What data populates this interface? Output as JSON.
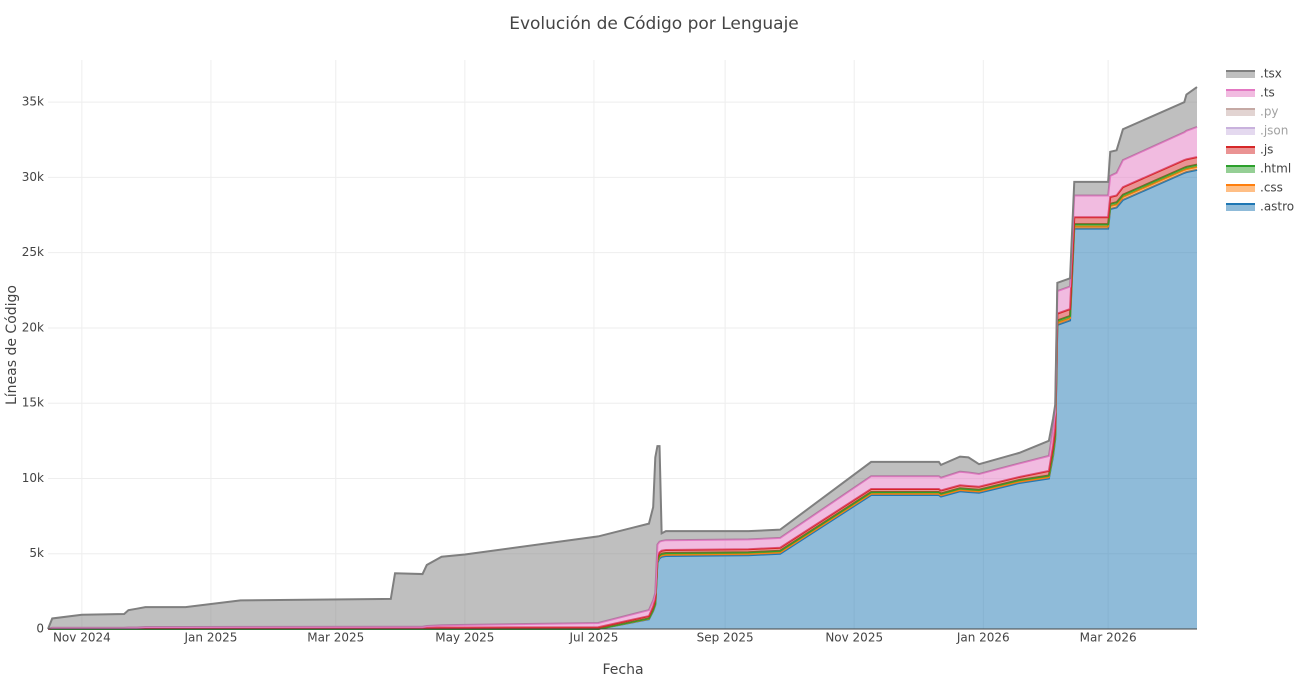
{
  "chart_data": {
    "type": "stacked_area",
    "title": "Evolución de Código por Lenguaje",
    "xlabel": "Fecha",
    "ylabel": "Líneas de Código",
    "grid": true,
    "legend": "right",
    "xlim": [
      "2024-10-16",
      "2026-04-12"
    ],
    "xticks": [
      {
        "value": "2024-11-01",
        "label": "Nov 2024"
      },
      {
        "value": "2025-01-01",
        "label": "Jan 2025"
      },
      {
        "value": "2025-03-01",
        "label": "Mar 2025"
      },
      {
        "value": "2025-05-01",
        "label": "May 2025"
      },
      {
        "value": "2025-07-01",
        "label": "Jul 2025"
      },
      {
        "value": "2025-09-01",
        "label": "Sep 2025"
      },
      {
        "value": "2025-11-01",
        "label": "Nov 2025"
      },
      {
        "value": "2026-01-01",
        "label": "Jan 2026"
      },
      {
        "value": "2026-03-01",
        "label": "Mar 2026"
      }
    ],
    "ylim": [
      0,
      37800
    ],
    "yticks": [
      0,
      {
        "value": 5000,
        "label": "5k"
      },
      {
        "value": 10000,
        "label": "10k"
      },
      {
        "value": 15000,
        "label": "15k"
      },
      {
        "value": 20000,
        "label": "20k"
      },
      {
        "value": 25000,
        "label": "25k"
      },
      {
        "value": 30000,
        "label": "30k"
      },
      {
        "value": 35000,
        "label": "35k"
      }
    ],
    "x": [
      "2024-10-16",
      "2024-10-18",
      "2024-11-01",
      "2024-11-21",
      "2024-11-23",
      "2024-11-27",
      "2024-12-01",
      "2024-12-20",
      "2025-01-15",
      "2025-03-27",
      "2025-03-29",
      "2025-04-11",
      "2025-04-13",
      "2025-04-20",
      "2025-05-01",
      "2025-07-03",
      "2025-07-27",
      "2025-07-29",
      "2025-07-30",
      "2025-07-31",
      "2025-08-01",
      "2025-08-02",
      "2025-08-04",
      "2025-09-12",
      "2025-09-27",
      "2025-11-09",
      "2025-12-11",
      "2025-12-12",
      "2025-12-21",
      "2025-12-25",
      "2025-12-30",
      "2026-01-18",
      "2026-02-01",
      "2026-02-03",
      "2026-02-04",
      "2026-02-05",
      "2026-02-11",
      "2026-02-13",
      "2026-03-01",
      "2026-03-02",
      "2026-03-05",
      "2026-03-08",
      "2026-04-06",
      "2026-04-07",
      "2026-04-12"
    ],
    "series": [
      {
        "name": ".astro",
        "color": "#1f77b4",
        "values": [
          0,
          0,
          0,
          0,
          0,
          0,
          0,
          0,
          0,
          0,
          0,
          0,
          0,
          0,
          0,
          0,
          650,
          1200,
          1600,
          4400,
          4700,
          4800,
          4850,
          4900,
          5000,
          8900,
          8900,
          8800,
          9150,
          9100,
          9050,
          9700,
          10000,
          11500,
          12600,
          20200,
          20500,
          26600,
          26600,
          27900,
          28000,
          28500,
          30300,
          30350,
          30500
        ]
      },
      {
        "name": ".css",
        "color": "#ff7f0e",
        "values": [
          0,
          0,
          0,
          0,
          0,
          0,
          0,
          0,
          0,
          0,
          0,
          0,
          0,
          0,
          0,
          0,
          30,
          50,
          50,
          80,
          100,
          100,
          100,
          100,
          100,
          100,
          100,
          100,
          100,
          100,
          100,
          100,
          100,
          150,
          150,
          150,
          150,
          150,
          150,
          200,
          200,
          200,
          200,
          200,
          200
        ]
      },
      {
        "name": ".html",
        "color": "#2ca02c",
        "values": [
          0,
          0,
          0,
          0,
          0,
          0,
          0,
          0,
          0,
          0,
          0,
          0,
          0,
          0,
          0,
          0,
          30,
          50,
          50,
          80,
          100,
          100,
          100,
          100,
          100,
          100,
          100,
          100,
          100,
          100,
          100,
          100,
          100,
          150,
          150,
          150,
          150,
          150,
          150,
          150,
          150,
          150,
          150,
          150,
          150
        ]
      },
      {
        "name": ".js",
        "color": "#d62728",
        "values": [
          0,
          30,
          30,
          30,
          40,
          40,
          50,
          50,
          50,
          50,
          50,
          50,
          80,
          100,
          100,
          120,
          150,
          200,
          250,
          250,
          200,
          200,
          200,
          200,
          200,
          200,
          200,
          200,
          200,
          200,
          200,
          200,
          300,
          400,
          400,
          450,
          450,
          450,
          450,
          450,
          450,
          500,
          500,
          500,
          500
        ]
      },
      {
        "name": ".json",
        "color": "#9467bd",
        "visible": false
      },
      {
        "name": ".py",
        "color": "#8c564b",
        "visible": false
      },
      {
        "name": ".ts",
        "color": "#e377c2",
        "values": [
          0,
          50,
          50,
          50,
          60,
          60,
          80,
          80,
          90,
          100,
          100,
          100,
          120,
          150,
          170,
          280,
          400,
          400,
          450,
          800,
          700,
          650,
          650,
          650,
          650,
          850,
          850,
          850,
          900,
          900,
          850,
          900,
          1000,
          1100,
          1100,
          1500,
          1500,
          1450,
          1450,
          1400,
          1500,
          1800,
          1850,
          1900,
          2000
        ]
      },
      {
        "name": ".tsx",
        "color": "#7f7f7f",
        "values": [
          0,
          620,
          870,
          920,
          1150,
          1250,
          1320,
          1320,
          1760,
          1850,
          3550,
          3500,
          4050,
          4550,
          4680,
          5750,
          5740,
          6200,
          9000,
          6540,
          6350,
          500,
          600,
          550,
          550,
          950,
          950,
          850,
          1000,
          1000,
          650,
          700,
          1000,
          700,
          500,
          550,
          550,
          900,
          900,
          1600,
          1500,
          2050,
          2000,
          2400,
          2650
        ]
      }
    ]
  }
}
